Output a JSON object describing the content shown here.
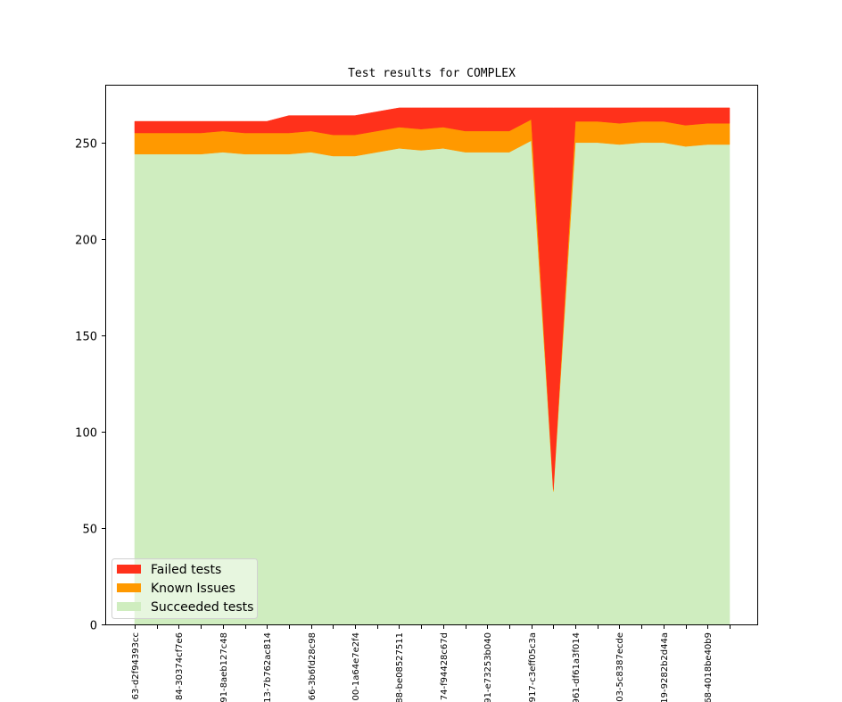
{
  "chart_data": {
    "type": "area",
    "stacked": true,
    "title": "Test results for COMPLEX",
    "xlabel": "",
    "ylabel": "",
    "ylim": [
      0,
      280
    ],
    "yticks": [
      0,
      50,
      100,
      150,
      200,
      250
    ],
    "x_count": 28,
    "x_tick_labels": [
      {
        "index": 0,
        "label": "63-d2f94393cc"
      },
      {
        "index": 2,
        "label": "84-30374cf7e6"
      },
      {
        "index": 4,
        "label": "91-8aeb127c48"
      },
      {
        "index": 6,
        "label": "13-7b762ac814"
      },
      {
        "index": 8,
        "label": "66-3b6fd28c98"
      },
      {
        "index": 10,
        "label": "00-1a64e7e2f4"
      },
      {
        "index": 12,
        "label": "88-be08527511"
      },
      {
        "index": 14,
        "label": "74-f94428c67d"
      },
      {
        "index": 16,
        "label": "91-e73253b040"
      },
      {
        "index": 18,
        "label": "917-c3eff05c3a"
      },
      {
        "index": 20,
        "label": "961-df61a3f014"
      },
      {
        "index": 22,
        "label": "03-5c8387ecde"
      },
      {
        "index": 24,
        "label": "19-9282b2d44a"
      },
      {
        "index": 26,
        "label": "68-4018be40b9"
      }
    ],
    "series": [
      {
        "name": "Succeeded tests",
        "color": "#cfedbf",
        "values": [
          244,
          244,
          244,
          244,
          245,
          244,
          244,
          244,
          245,
          243,
          243,
          245,
          247,
          246,
          247,
          245,
          245,
          245,
          251,
          69,
          250,
          250,
          249,
          250,
          250,
          248,
          249,
          249
        ]
      },
      {
        "name": "Known Issues",
        "color": "#ff9900",
        "values": [
          11,
          11,
          11,
          11,
          11,
          11,
          11,
          11,
          11,
          11,
          11,
          11,
          11,
          11,
          11,
          11,
          11,
          11,
          11,
          1,
          11,
          11,
          11,
          11,
          11,
          11,
          11,
          11
        ]
      },
      {
        "name": "Failed tests",
        "color": "#ff311b",
        "values": [
          6,
          6,
          6,
          6,
          5,
          6,
          6,
          9,
          8,
          10,
          10,
          10,
          10,
          11,
          10,
          12,
          12,
          12,
          6,
          198,
          7,
          7,
          8,
          7,
          7,
          9,
          8,
          8
        ]
      }
    ],
    "legend": {
      "placement": "lower-left",
      "entries": [
        "Failed tests",
        "Known Issues",
        "Succeeded tests"
      ]
    },
    "grid": false
  }
}
